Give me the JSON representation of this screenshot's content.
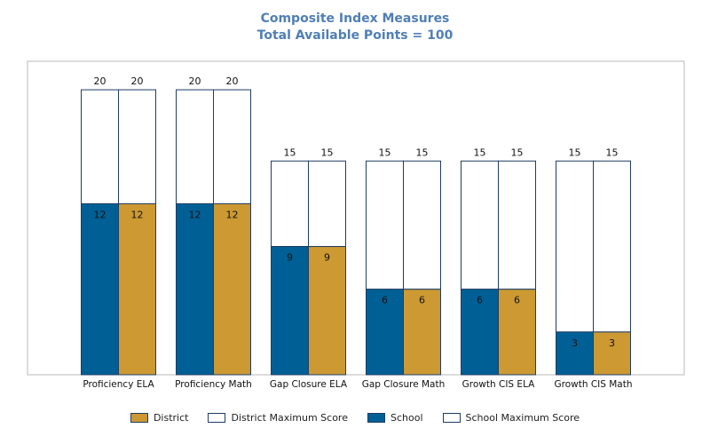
{
  "chart_data": {
    "type": "bar",
    "title": "Composite Index Measures",
    "subtitle": "Total Available Points = 100",
    "categories": [
      "Proficiency ELA",
      "Proficiency Math",
      "Gap Closure ELA",
      "Gap Closure Math",
      "Growth CIS ELA",
      "Growth CIS Math"
    ],
    "series": [
      {
        "name": "School",
        "values": [
          12,
          12,
          9,
          6,
          6,
          3
        ],
        "max_name": "School Maximum Score",
        "max_values": [
          20,
          20,
          15,
          15,
          15,
          15
        ]
      },
      {
        "name": "District",
        "values": [
          12,
          12,
          9,
          6,
          6,
          3
        ],
        "max_name": "District Maximum Score",
        "max_values": [
          20,
          20,
          15,
          15,
          15,
          15
        ]
      }
    ],
    "ylim": [
      0,
      22
    ],
    "grid": false,
    "legend_position": "bottom",
    "colors": {
      "school": "#006095",
      "district": "#cc9933",
      "maximum": "#ffffff",
      "bar_border": "#1f3d63",
      "title": "#4f7fb6",
      "frame": "#b8b8b8"
    }
  },
  "legend": [
    {
      "label": "District",
      "color": "#cc9933"
    },
    {
      "label": "District Maximum Score",
      "color": "#ffffff"
    },
    {
      "label": "School",
      "color": "#006095"
    },
    {
      "label": "School Maximum Score",
      "color": "#ffffff"
    }
  ]
}
